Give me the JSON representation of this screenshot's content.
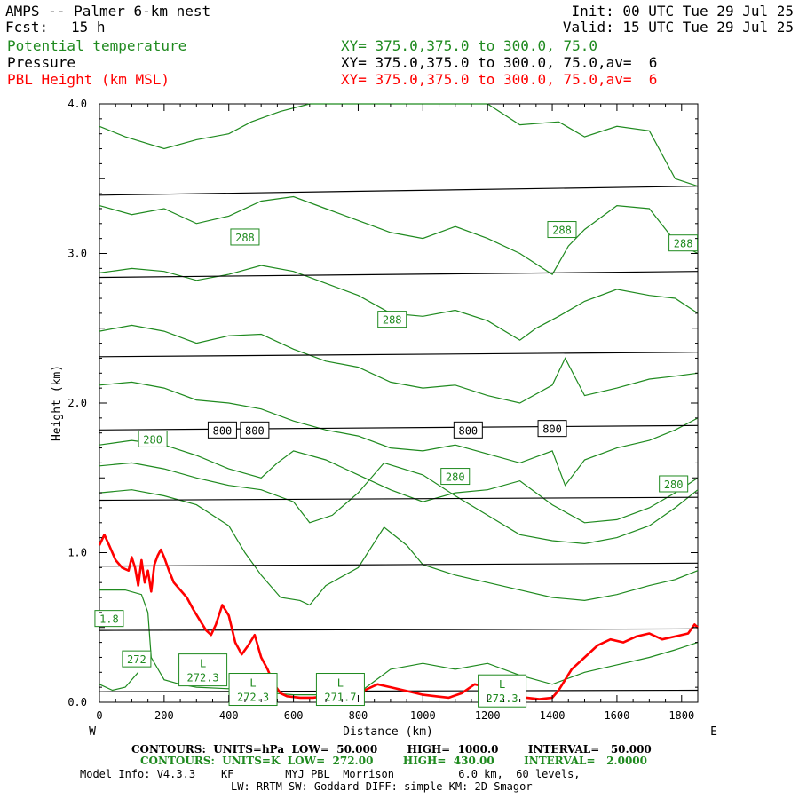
{
  "header": {
    "title": "AMPS -- Palmer 6-km nest",
    "fcst_label": "Fcst:",
    "fcst_value": "15 h",
    "init": "Init: 00 UTC Tue 29 Jul 25",
    "valid": "Valid: 15 UTC Tue 29 Jul 25",
    "fields": [
      {
        "name": "Potential temperature",
        "xy": "XY= 375.0,375.0 to 300.0, 75.0",
        "color": "#1f8a1f"
      },
      {
        "name": "Pressure",
        "xy": "XY= 375.0,375.0 to 300.0, 75.0,av=  6",
        "color": "#000000"
      },
      {
        "name": "PBL Height (km MSL)",
        "xy": "XY= 375.0,375.0 to 300.0, 75.0,av=  6",
        "color": "#ff0000"
      }
    ]
  },
  "footer": {
    "pressure_contours": "CONTOURS:  UNITS=hPa  LOW=  50.000        HIGH=  1000.0        INTERVAL=   50.000",
    "theta_contours": "CONTOURS:  UNITS=K  LOW=  272.00        HIGH=  430.00        INTERVAL=   2.0000",
    "model_info": "Model Info: V4.3.3    KF        MYJ PBL  Morrison          6.0 km,  60 levels,",
    "model_info2": "LW: RRTM SW: Goddard DIFF: simple KM: 2D Smagor"
  },
  "chart_data": {
    "type": "line",
    "xlabel": "Distance (km)",
    "ylabel": "Height (km)",
    "xlim": [
      0,
      1850
    ],
    "ylim": [
      0,
      4.0
    ],
    "x_ticks": [
      0,
      200,
      400,
      600,
      800,
      1000,
      1200,
      1400,
      1600,
      1800
    ],
    "x_tick_labels": [
      "0",
      "200",
      "400",
      "600",
      "800",
      "1000",
      "1200",
      "1400",
      "1600",
      "1800"
    ],
    "y_ticks": [
      0,
      1.0,
      2.0,
      3.0,
      4.0
    ],
    "y_tick_labels": [
      "0.0",
      "1.0",
      "2.0",
      "3.0",
      "4.0"
    ],
    "left_end_label": "W",
    "right_end_label": "E",
    "pressure_labels": [
      {
        "text": "800",
        "x": 380,
        "y": 1.82
      },
      {
        "text": "800",
        "x": 480,
        "y": 1.82
      },
      {
        "text": "800",
        "x": 1140,
        "y": 1.82
      },
      {
        "text": "800",
        "x": 1400,
        "y": 1.83
      }
    ],
    "theta_labels": [
      {
        "text": "288",
        "x": 450,
        "y": 3.11
      },
      {
        "text": "288",
        "x": 905,
        "y": 2.56
      },
      {
        "text": "288",
        "x": 1430,
        "y": 3.16
      },
      {
        "text": "288",
        "x": 1805,
        "y": 3.07
      },
      {
        "text": "280",
        "x": 165,
        "y": 1.76
      },
      {
        "text": "280",
        "x": 1100,
        "y": 1.51
      },
      {
        "text": "280",
        "x": 1775,
        "y": 1.46
      },
      {
        "text": "272",
        "x": 115,
        "y": 0.29
      },
      {
        "text": "1.8",
        "x": 30,
        "y": 0.56
      }
    ],
    "low_labels": [
      {
        "letter": "L",
        "value": "272.3",
        "x": 320,
        "y": 0.21
      },
      {
        "letter": "L",
        "value": "272.3",
        "x": 475,
        "y": 0.08
      },
      {
        "letter": "L",
        "value": "271.7",
        "x": 745,
        "y": 0.08
      },
      {
        "letter": "L",
        "value": "272.3",
        "x": 1245,
        "y": 0.07
      }
    ],
    "series": [
      {
        "name": "Pressure",
        "kind": "isobar",
        "color": "#000000",
        "lines": [
          {
            "x": [
              0,
              1850
            ],
            "y": [
              0.07,
              0.08
            ]
          },
          {
            "x": [
              0,
              1850
            ],
            "y": [
              0.48,
              0.49
            ]
          },
          {
            "x": [
              0,
              1850
            ],
            "y": [
              0.91,
              0.93
            ]
          },
          {
            "x": [
              0,
              1850
            ],
            "y": [
              1.35,
              1.37
            ]
          },
          {
            "x": [
              0,
              1850
            ],
            "y": [
              1.82,
              1.85
            ]
          },
          {
            "x": [
              0,
              1850
            ],
            "y": [
              2.31,
              2.34
            ]
          },
          {
            "x": [
              0,
              1850
            ],
            "y": [
              2.84,
              2.88
            ]
          },
          {
            "x": [
              0,
              1850
            ],
            "y": [
              3.39,
              3.45
            ]
          }
        ]
      },
      {
        "name": "Potential temperature",
        "kind": "isentrope",
        "color": "#1f8a1f",
        "lines": [
          {
            "x": [
              0,
              80,
              200,
              300,
              400,
              470,
              560,
              650,
              760,
              880,
              1000,
              1100,
              1200,
              1300,
              1420,
              1500,
              1600,
              1700,
              1780,
              1850
            ],
            "y": [
              3.85,
              3.78,
              3.7,
              3.76,
              3.8,
              3.88,
              3.95,
              4.0,
              4.0,
              4.0,
              4.0,
              4.0,
              4.0,
              3.86,
              3.88,
              3.78,
              3.85,
              3.82,
              3.5,
              3.45
            ]
          },
          {
            "x": [
              0,
              100,
              200,
              300,
              400,
              500,
              600,
              700,
              800,
              900,
              1000,
              1100,
              1200,
              1300,
              1400,
              1450,
              1500,
              1600,
              1700,
              1780,
              1850
            ],
            "y": [
              3.32,
              3.26,
              3.3,
              3.2,
              3.25,
              3.35,
              3.38,
              3.3,
              3.22,
              3.14,
              3.1,
              3.18,
              3.1,
              3.0,
              2.86,
              3.05,
              3.16,
              3.32,
              3.3,
              3.08,
              3.0
            ]
          },
          {
            "x": [
              0,
              100,
              200,
              300,
              400,
              500,
              600,
              700,
              800,
              900,
              1000,
              1100,
              1200,
              1300,
              1350,
              1420,
              1500,
              1600,
              1700,
              1780,
              1850
            ],
            "y": [
              2.87,
              2.9,
              2.88,
              2.82,
              2.86,
              2.92,
              2.88,
              2.8,
              2.72,
              2.6,
              2.58,
              2.62,
              2.55,
              2.42,
              2.5,
              2.58,
              2.68,
              2.76,
              2.72,
              2.7,
              2.6
            ]
          },
          {
            "x": [
              0,
              100,
              200,
              300,
              400,
              500,
              600,
              700,
              800,
              900,
              1000,
              1100,
              1200,
              1300,
              1400,
              1440,
              1500,
              1600,
              1700,
              1780,
              1850
            ],
            "y": [
              2.48,
              2.52,
              2.48,
              2.4,
              2.45,
              2.46,
              2.36,
              2.28,
              2.24,
              2.14,
              2.1,
              2.12,
              2.05,
              2.0,
              2.12,
              2.3,
              2.05,
              2.1,
              2.16,
              2.18,
              2.2
            ]
          },
          {
            "x": [
              0,
              100,
              200,
              300,
              400,
              500,
              600,
              700,
              800,
              900,
              1000,
              1100,
              1200,
              1300,
              1400,
              1440,
              1500,
              1600,
              1700,
              1780,
              1850
            ],
            "y": [
              2.12,
              2.14,
              2.1,
              2.02,
              2.0,
              1.96,
              1.88,
              1.82,
              1.78,
              1.7,
              1.68,
              1.72,
              1.66,
              1.6,
              1.68,
              1.45,
              1.62,
              1.7,
              1.75,
              1.82,
              1.9
            ]
          },
          {
            "x": [
              0,
              100,
              200,
              300,
              400,
              500,
              550,
              600,
              700,
              800,
              900,
              1000,
              1100,
              1200,
              1300,
              1400,
              1500,
              1600,
              1700,
              1780,
              1850
            ],
            "y": [
              1.72,
              1.75,
              1.72,
              1.65,
              1.56,
              1.5,
              1.6,
              1.68,
              1.62,
              1.52,
              1.42,
              1.34,
              1.4,
              1.42,
              1.48,
              1.32,
              1.2,
              1.22,
              1.3,
              1.4,
              1.5
            ]
          },
          {
            "x": [
              0,
              100,
              200,
              300,
              400,
              500,
              600,
              650,
              720,
              800,
              880,
              1000,
              1100,
              1200,
              1300,
              1400,
              1500,
              1600,
              1700,
              1780,
              1850
            ],
            "y": [
              1.58,
              1.6,
              1.56,
              1.5,
              1.45,
              1.42,
              1.34,
              1.2,
              1.25,
              1.4,
              1.6,
              1.52,
              1.38,
              1.25,
              1.12,
              1.08,
              1.06,
              1.1,
              1.18,
              1.3,
              1.42
            ]
          },
          {
            "x": [
              0,
              100,
              200,
              300,
              400,
              450,
              500,
              560,
              620,
              650,
              700,
              800,
              880,
              950,
              1000,
              1100,
              1200,
              1300,
              1400,
              1500,
              1600,
              1700,
              1780,
              1850
            ],
            "y": [
              1.4,
              1.42,
              1.38,
              1.32,
              1.18,
              1.0,
              0.85,
              0.7,
              0.68,
              0.65,
              0.78,
              0.9,
              1.17,
              1.05,
              0.92,
              0.85,
              0.8,
              0.75,
              0.7,
              0.68,
              0.72,
              0.78,
              0.82,
              0.88
            ]
          },
          {
            "x": [
              0,
              80,
              130,
              150,
              160,
              200,
              250,
              300,
              400,
              500,
              540,
              600,
              700,
              800,
              900,
              1000,
              1100,
              1200,
              1300,
              1400,
              1500,
              1600,
              1700,
              1780,
              1850
            ],
            "y": [
              0.75,
              0.75,
              0.72,
              0.6,
              0.3,
              0.15,
              0.12,
              0.1,
              0.09,
              0.08,
              0.06,
              0.05,
              0.05,
              0.06,
              0.22,
              0.26,
              0.22,
              0.26,
              0.18,
              0.12,
              0.2,
              0.25,
              0.3,
              0.35,
              0.4
            ]
          },
          {
            "x": [
              0,
              40,
              80,
              120
            ],
            "y": [
              0.12,
              0.08,
              0.1,
              0.2
            ]
          }
        ]
      },
      {
        "name": "PBL Height (km MSL)",
        "kind": "pbl",
        "color": "#ff0000",
        "x": [
          0,
          15,
          30,
          50,
          70,
          90,
          100,
          110,
          120,
          130,
          140,
          150,
          160,
          170,
          180,
          190,
          200,
          215,
          230,
          250,
          270,
          290,
          310,
          330,
          345,
          360,
          380,
          400,
          420,
          440,
          460,
          480,
          500,
          520,
          540,
          560,
          580,
          620,
          660,
          700,
          740,
          780,
          820,
          860,
          880,
          900,
          940,
          980,
          1000,
          1040,
          1080,
          1120,
          1160,
          1200,
          1240,
          1280,
          1320,
          1360,
          1400,
          1420,
          1440,
          1460,
          1480,
          1500,
          1540,
          1580,
          1620,
          1660,
          1700,
          1740,
          1780,
          1820,
          1840,
          1850
        ],
        "y": [
          1.05,
          1.12,
          1.05,
          0.95,
          0.9,
          0.88,
          0.97,
          0.9,
          0.78,
          0.95,
          0.8,
          0.88,
          0.74,
          0.92,
          0.98,
          1.02,
          0.97,
          0.88,
          0.8,
          0.75,
          0.7,
          0.62,
          0.55,
          0.48,
          0.45,
          0.52,
          0.65,
          0.58,
          0.4,
          0.32,
          0.38,
          0.45,
          0.3,
          0.22,
          0.12,
          0.06,
          0.04,
          0.03,
          0.03,
          0.04,
          0.06,
          0.05,
          0.08,
          0.12,
          0.11,
          0.1,
          0.08,
          0.06,
          0.05,
          0.04,
          0.03,
          0.06,
          0.12,
          0.1,
          0.08,
          0.06,
          0.03,
          0.02,
          0.03,
          0.08,
          0.15,
          0.22,
          0.26,
          0.3,
          0.38,
          0.42,
          0.4,
          0.44,
          0.46,
          0.42,
          0.44,
          0.46,
          0.52,
          0.5
        ]
      }
    ]
  }
}
